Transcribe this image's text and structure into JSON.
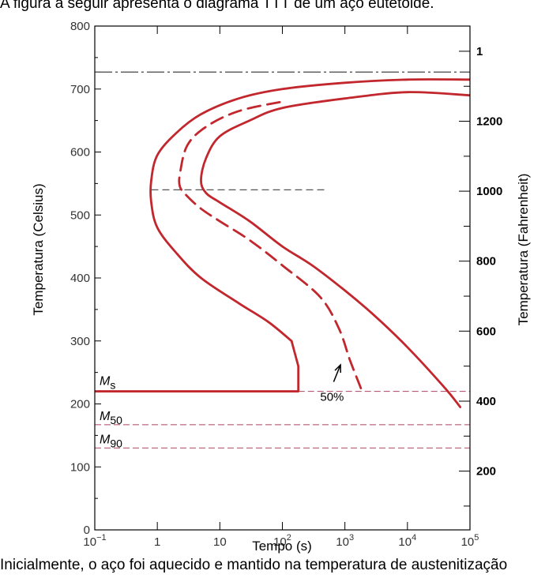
{
  "page": {
    "top_caption": "A figura a seguir apresenta o diagrama TTT de um aço eutetóide.",
    "bottom_caption": "Inicialmente, o aço foi aquecido e mantido na temperatura de austenitização"
  },
  "chart_data": {
    "type": "line",
    "title": "",
    "xlabel": "Tempo (s)",
    "ylabel_left": "Temperatura (Celsius)",
    "ylabel_right": "Temperatura (Fahrenheit)",
    "x_scale": "log",
    "xlim": [
      0.1,
      100000
    ],
    "ylim": [
      0,
      800
    ],
    "x_ticks": [
      {
        "value": 0.1,
        "base": "10",
        "exp": "−1"
      },
      {
        "value": 1,
        "label": "1"
      },
      {
        "value": 10,
        "label": "10"
      },
      {
        "value": 100,
        "base": "10",
        "exp": "2"
      },
      {
        "value": 1000,
        "base": "10",
        "exp": "3"
      },
      {
        "value": 10000,
        "base": "10",
        "exp": "4"
      },
      {
        "value": 100000,
        "base": "10",
        "exp": "5"
      }
    ],
    "y_ticks_left": [
      "0",
      "100",
      "200",
      "300",
      "400",
      "500",
      "600",
      "700",
      "800"
    ],
    "y_tick_values_left": [
      0,
      100,
      200,
      300,
      400,
      500,
      600,
      700,
      800
    ],
    "y_ticks_right": [
      {
        "value_c": 93.3,
        "label": "200"
      },
      {
        "value_c": 204.4,
        "label": "400"
      },
      {
        "value_c": 315.6,
        "label": "600"
      },
      {
        "value_c": 426.7,
        "label": "800"
      },
      {
        "value_c": 537.8,
        "label": "1000"
      },
      {
        "value_c": 648.9,
        "label": "1200"
      },
      {
        "value_c": 760.0,
        "label": "1"
      }
    ],
    "y_minor_right": [
      37.8,
      148.9,
      260.0,
      371.1,
      482.2,
      593.3,
      704.4
    ],
    "eutectoid_temp": 727,
    "bay_temp": 540,
    "lines": {
      "Ms": {
        "label": "M",
        "sub": "s",
        "temp": 220,
        "x_end": 180
      },
      "M50": {
        "label": "M",
        "sub": "50",
        "temp": 167
      },
      "M90": {
        "label": "M",
        "sub": "90",
        "temp": 130
      }
    },
    "series": [
      {
        "role": "start",
        "x": [
          140,
          60,
          20,
          5,
          2,
          1,
          0.8,
          0.8,
          1,
          2,
          5,
          20,
          100,
          1000,
          10000,
          100000
        ],
        "y": [
          300,
          330,
          360,
          400,
          440,
          480,
          520,
          555,
          595,
          630,
          660,
          685,
          700,
          710,
          715,
          715
        ]
      },
      {
        "role": "start-vertical",
        "x": [
          180,
          180,
          140
        ],
        "y": [
          220,
          260,
          300
        ]
      },
      {
        "role": "fifty-percent",
        "x": [
          1800,
          1200,
          800,
          400,
          100,
          30,
          10,
          5,
          3,
          2.3,
          2.3,
          3,
          6,
          20,
          100
        ],
        "y": [
          225,
          270,
          320,
          370,
          420,
          460,
          490,
          510,
          530,
          545,
          565,
          610,
          640,
          665,
          680
        ]
      },
      {
        "role": "finish",
        "x": [
          70000,
          40000,
          10000,
          3000,
          1000,
          300,
          100,
          30,
          10,
          6,
          5,
          6,
          10,
          30,
          100,
          1000,
          10000,
          100000
        ],
        "y": [
          195,
          225,
          290,
          340,
          380,
          420,
          450,
          490,
          520,
          535,
          555,
          590,
          625,
          650,
          670,
          685,
          695,
          690
        ]
      }
    ],
    "annotation": {
      "text": "50%",
      "x": 700,
      "y": 220,
      "arrow_to_x": 850,
      "arrow_to_y": 262
    },
    "colors": {
      "curve": "#c1272d",
      "dashed_ref": "#b55a72",
      "axis": "#000000"
    }
  }
}
